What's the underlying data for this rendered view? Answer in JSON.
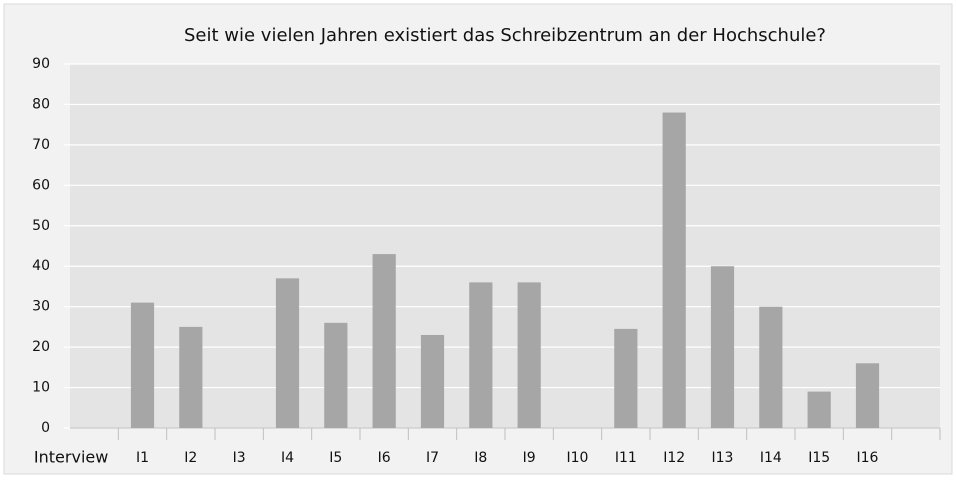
{
  "chart_data": {
    "type": "bar",
    "title": "Seit wie vielen Jahren existiert das Schreibzentrum an der Hochschule?",
    "categories": [
      "Interview",
      "I1",
      "I2",
      "I3",
      "I4",
      "I5",
      "I6",
      "I7",
      "I8",
      "I9",
      "I10",
      "I11",
      "I12",
      "I13",
      "I14",
      "I15",
      "I16",
      null
    ],
    "values": [
      null,
      31,
      25,
      null,
      37,
      26,
      43,
      23,
      36,
      36,
      null,
      24.5,
      78,
      40,
      30,
      9,
      16,
      null
    ],
    "color": "#a6a6a6",
    "ylim": [
      0,
      90
    ],
    "yticks": [
      0,
      10,
      20,
      30,
      40,
      50,
      60,
      70,
      80,
      90
    ],
    "grid": true
  }
}
